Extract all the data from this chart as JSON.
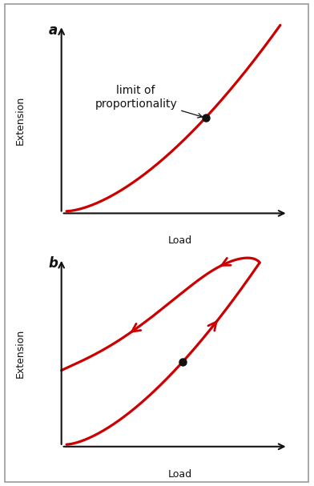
{
  "background_color": "#f8f8f8",
  "outer_bg": "#ffffff",
  "line_color": "#cc0000",
  "axis_color": "#111111",
  "dot_color": "#111111",
  "label_a": "a",
  "label_b": "b",
  "xlabel": "Load",
  "ylabel": "Extension",
  "annotation_text": "limit of\nproportionality",
  "annotation_fontsize": 10,
  "label_fontsize": 12,
  "border_color": "#999999"
}
